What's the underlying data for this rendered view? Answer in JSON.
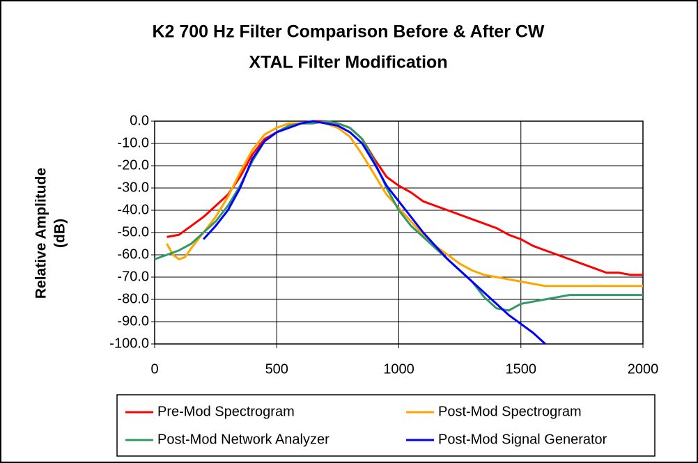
{
  "chart_data": {
    "type": "line",
    "title": [
      "K2 700 Hz Filter Comparison Before & After CW",
      "XTAL Filter Modification"
    ],
    "ylabel": [
      "Relative Amplitude",
      "(dB)"
    ],
    "xlim": [
      0,
      2000
    ],
    "xticks": [
      0,
      500,
      1000,
      1500,
      2000
    ],
    "ylim": [
      -100,
      0
    ],
    "yticks": [
      {
        "value": 0,
        "label": "0.0"
      },
      {
        "value": -10,
        "label": "-10.0"
      },
      {
        "value": -20,
        "label": "-20.0"
      },
      {
        "value": -30,
        "label": "-30.0"
      },
      {
        "value": -40,
        "label": "-40.0"
      },
      {
        "value": -50,
        "label": "-50.0"
      },
      {
        "value": -60,
        "label": "-60.0"
      },
      {
        "value": -70,
        "label": "-70.0"
      },
      {
        "value": -80,
        "label": "-80.0"
      },
      {
        "value": -90,
        "label": "-90.0"
      },
      {
        "value": -100,
        "label": "-100.0"
      }
    ],
    "grid": true,
    "legend": "bottom",
    "series": [
      {
        "name": "Pre-Mod Spectrogram",
        "color": "#ff0000",
        "x": [
          50,
          100,
          150,
          200,
          250,
          300,
          350,
          400,
          450,
          500,
          550,
          600,
          650,
          700,
          750,
          800,
          850,
          900,
          950,
          1000,
          1050,
          1100,
          1150,
          1200,
          1250,
          1300,
          1350,
          1400,
          1450,
          1500,
          1550,
          1600,
          1650,
          1700,
          1750,
          1800,
          1850,
          1900,
          1950,
          2000
        ],
        "values": [
          -52,
          -51,
          -47,
          -43,
          -38,
          -33,
          -25,
          -15,
          -8,
          -5,
          -2,
          -1,
          0,
          0,
          -1,
          -3,
          -8,
          -17,
          -25,
          -29,
          -32,
          -36,
          -38,
          -40,
          -42,
          -44,
          -46,
          -48,
          -51,
          -53,
          -56,
          -58,
          -60,
          -62,
          -64,
          -66,
          -68,
          -68,
          -69,
          -69
        ]
      },
      {
        "name": "Post-Mod Spectrogram",
        "color": "#ffa500",
        "x": [
          50,
          75,
          100,
          125,
          150,
          200,
          250,
          300,
          350,
          400,
          450,
          500,
          550,
          600,
          650,
          700,
          750,
          800,
          850,
          900,
          950,
          1000,
          1050,
          1100,
          1150,
          1200,
          1250,
          1300,
          1350,
          1400,
          1450,
          1500,
          1550,
          1600,
          1700,
          1800,
          1900,
          2000
        ],
        "values": [
          -55,
          -60,
          -62,
          -61,
          -57,
          -50,
          -43,
          -34,
          -23,
          -13,
          -6,
          -3,
          -1,
          -1,
          0,
          -1,
          -3,
          -7,
          -15,
          -24,
          -33,
          -39,
          -45,
          -51,
          -56,
          -60,
          -64,
          -67,
          -69,
          -70,
          -71,
          -72,
          -73,
          -74,
          -74,
          -74,
          -74,
          -74
        ]
      },
      {
        "name": "Post-Mod Network Analyzer",
        "color": "#339966",
        "x": [
          0,
          50,
          100,
          150,
          200,
          250,
          300,
          350,
          400,
          450,
          500,
          550,
          600,
          650,
          700,
          750,
          800,
          850,
          900,
          950,
          1000,
          1050,
          1100,
          1150,
          1200,
          1250,
          1300,
          1350,
          1400,
          1450,
          1500,
          1550,
          1600,
          1650,
          1700,
          1750,
          1800,
          1850,
          1900,
          1950,
          2000
        ],
        "values": [
          -62,
          -60,
          -58,
          -55,
          -50,
          -45,
          -38,
          -29,
          -18,
          -9,
          -5,
          -2,
          -1,
          -1,
          0,
          -1,
          -3,
          -8,
          -18,
          -30,
          -40,
          -47,
          -52,
          -57,
          -62,
          -67,
          -72,
          -79,
          -84,
          -85,
          -82,
          -81,
          -80,
          -79,
          -78,
          -78,
          -78,
          -78,
          -78,
          -78,
          -78
        ]
      },
      {
        "name": "Post-Mod Signal Generator",
        "color": "#0000ff",
        "x": [
          200,
          250,
          300,
          350,
          400,
          450,
          500,
          550,
          600,
          650,
          700,
          750,
          800,
          850,
          900,
          950,
          1000,
          1050,
          1100,
          1150,
          1200,
          1250,
          1300,
          1350,
          1400,
          1450,
          1500,
          1550,
          1600
        ],
        "values": [
          -53,
          -47,
          -40,
          -30,
          -17,
          -9,
          -5,
          -3,
          -1,
          0,
          -1,
          -2,
          -5,
          -10,
          -19,
          -29,
          -36,
          -43,
          -50,
          -56,
          -62,
          -67,
          -72,
          -77,
          -82,
          -87,
          -91,
          -95,
          -100
        ]
      }
    ]
  }
}
